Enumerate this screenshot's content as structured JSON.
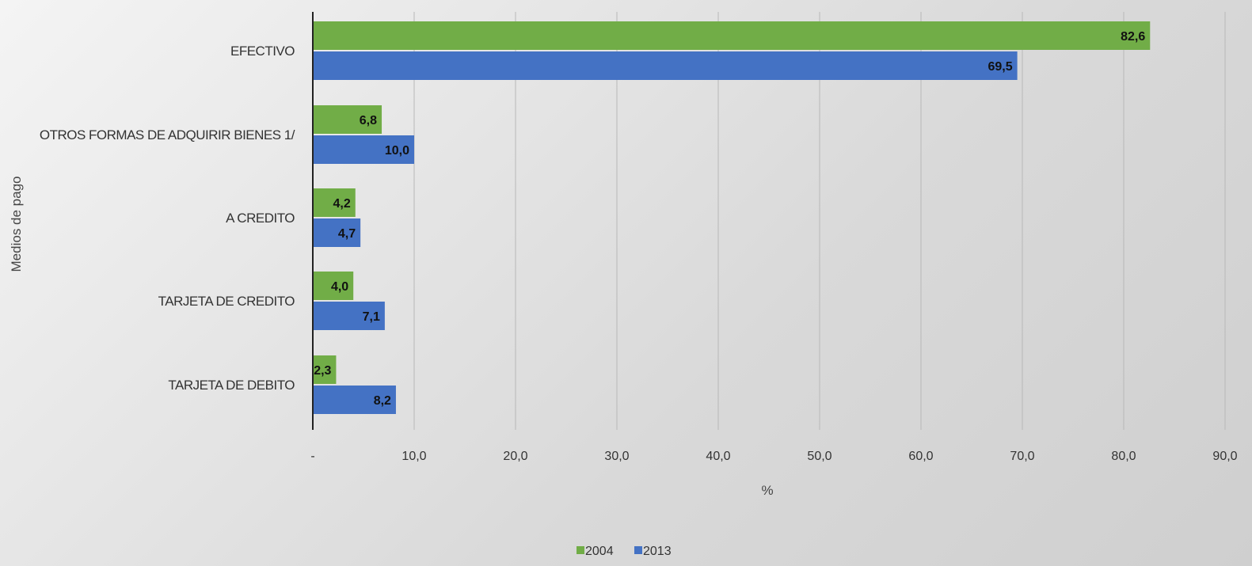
{
  "chart_data": {
    "type": "bar",
    "orientation": "horizontal",
    "categories": [
      "EFECTIVO",
      "OTROS FORMAS DE ADQUIRIR BIENES 1/",
      "A CREDITO",
      "TARJETA DE CREDITO",
      "TARJETA DE DEBITO"
    ],
    "series": [
      {
        "name": "2004",
        "color": "#71ad47",
        "values": [
          82.6,
          6.8,
          4.2,
          4.0,
          2.3
        ],
        "labels": [
          "82,6",
          "6,8",
          "4,2",
          "4,0",
          "2,3"
        ]
      },
      {
        "name": "2013",
        "color": "#4472c4",
        "values": [
          69.5,
          10.0,
          4.7,
          7.1,
          8.2
        ],
        "labels": [
          "69,5",
          "10,0",
          "4,7",
          "7,1",
          "8,2"
        ]
      }
    ],
    "xlim": [
      0,
      90
    ],
    "xticks": [
      0,
      10,
      20,
      30,
      40,
      50,
      60,
      70,
      80,
      90
    ],
    "xtick_labels": [
      "-",
      "10,0",
      "20,0",
      "30,0",
      "40,0",
      "50,0",
      "60,0",
      "70,0",
      "80,0",
      "90,0"
    ],
    "xlabel": "%",
    "ylabel": "Medios de pago",
    "grid": "vertical",
    "legend": "bottom"
  }
}
